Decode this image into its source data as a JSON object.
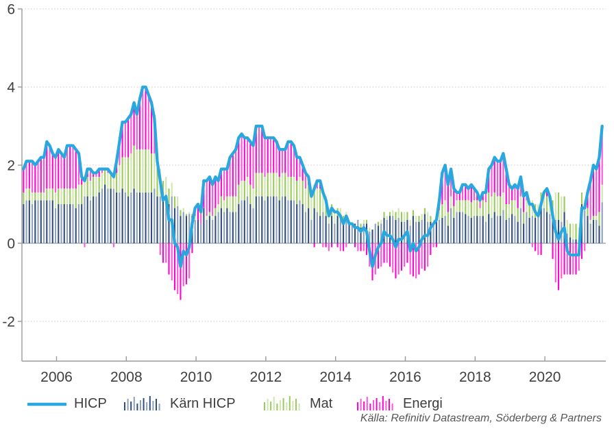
{
  "source": "Källa: Refinitiv Datastream, Söderberg & Partners",
  "legend": [
    {
      "label": "HICP",
      "type": "line",
      "color": "#29a8e0"
    },
    {
      "label": "Kärn HICP",
      "type": "bars",
      "color": "#2e4d7b",
      "color_light": "#8da0bd"
    },
    {
      "label": "Mat",
      "type": "bars",
      "color": "#9bc95d",
      "color_light": "#cfe7ad"
    },
    {
      "label": "Energi",
      "type": "bars",
      "color": "#fb04cd",
      "color_light": "#ff55da"
    }
  ],
  "chart_data": {
    "type": "line+stacked-bar",
    "title": "",
    "xlabel": "",
    "ylabel": "",
    "x_start": "2005-01",
    "x_end": "2021-08",
    "frequency": "monthly",
    "x_tick_labels": [
      "2006",
      "2008",
      "2010",
      "2012",
      "2014",
      "2016",
      "2018",
      "2020"
    ],
    "y_ticks": [
      6,
      4,
      2,
      0,
      -2
    ],
    "ylim": [
      -3.0,
      6.0
    ],
    "grid": "dotted horizontal",
    "legend_position": "bottom",
    "colors": {
      "line": "#29a8e0",
      "grid": "#c6c6c6",
      "axis": "#9a9a9a",
      "tick_text": "#3f3f3f"
    },
    "series": {
      "hicp": {
        "name": "HICP",
        "kind": "line",
        "values": [
          1.9,
          2.1,
          2.1,
          2.1,
          2.0,
          2.1,
          2.2,
          2.2,
          2.6,
          2.5,
          2.3,
          2.2,
          2.4,
          2.3,
          2.2,
          2.5,
          2.5,
          2.5,
          2.4,
          2.3,
          1.7,
          1.6,
          1.9,
          1.9,
          1.8,
          1.8,
          1.9,
          1.9,
          1.9,
          1.9,
          1.8,
          1.7,
          2.1,
          2.6,
          3.1,
          3.1,
          3.2,
          3.3,
          3.6,
          3.3,
          3.7,
          4.0,
          4.0,
          3.8,
          3.6,
          3.2,
          2.1,
          1.6,
          1.1,
          1.2,
          0.6,
          0.6,
          0.0,
          -0.1,
          -0.6,
          -0.2,
          -0.3,
          -0.1,
          0.5,
          0.9,
          1.0,
          0.8,
          1.6,
          1.6,
          1.7,
          1.5,
          1.7,
          1.6,
          1.9,
          1.9,
          1.9,
          2.2,
          2.3,
          2.4,
          2.7,
          2.8,
          2.7,
          2.7,
          2.6,
          2.5,
          3.0,
          3.0,
          3.0,
          2.7,
          2.7,
          2.7,
          2.7,
          2.6,
          2.4,
          2.4,
          2.4,
          2.6,
          2.6,
          2.5,
          2.2,
          2.2,
          2.0,
          1.8,
          1.7,
          1.2,
          1.4,
          1.6,
          1.6,
          1.3,
          1.1,
          0.7,
          0.9,
          0.8,
          0.8,
          0.7,
          0.5,
          0.7,
          0.5,
          0.5,
          0.4,
          0.4,
          0.3,
          0.4,
          0.3,
          -0.2,
          -0.6,
          -0.3,
          -0.1,
          0.0,
          0.3,
          0.2,
          0.2,
          0.1,
          -0.1,
          0.1,
          0.1,
          0.2,
          0.3,
          -0.2,
          0.0,
          -0.2,
          -0.1,
          0.1,
          0.2,
          0.2,
          0.4,
          0.5,
          0.6,
          1.1,
          1.8,
          2.0,
          1.5,
          1.9,
          1.4,
          1.3,
          1.3,
          1.5,
          1.5,
          1.4,
          1.5,
          1.4,
          1.3,
          1.1,
          1.3,
          1.3,
          1.9,
          2.0,
          2.2,
          2.1,
          2.1,
          2.3,
          1.9,
          1.5,
          1.4,
          1.5,
          1.4,
          1.7,
          1.2,
          1.3,
          1.0,
          1.0,
          0.8,
          0.7,
          1.0,
          1.3,
          1.4,
          1.2,
          0.7,
          0.3,
          0.1,
          0.3,
          0.4,
          -0.2,
          -0.3,
          -0.3,
          -0.3,
          -0.3,
          0.9,
          0.9,
          1.3,
          1.6,
          2.0,
          1.9,
          2.2,
          3.0
        ]
      },
      "karn_hicp": {
        "name": "Kärn HICP",
        "kind": "bar-contribution",
        "values": [
          1.0,
          1.1,
          1.1,
          1.0,
          1.1,
          1.1,
          1.1,
          1.1,
          1.1,
          1.1,
          1.1,
          0.9,
          1.0,
          1.0,
          1.0,
          1.0,
          1.0,
          1.0,
          0.9,
          1.0,
          1.0,
          1.2,
          1.2,
          1.1,
          1.2,
          1.2,
          1.3,
          1.4,
          1.5,
          1.4,
          1.4,
          1.4,
          1.3,
          1.3,
          1.4,
          1.3,
          1.2,
          1.3,
          1.4,
          1.3,
          1.3,
          1.3,
          1.3,
          1.3,
          1.3,
          1.4,
          1.2,
          1.2,
          1.1,
          1.25,
          1.0,
          1.2,
          0.9,
          0.95,
          0.7,
          0.8,
          0.7,
          0.75,
          0.7,
          0.6,
          0.6,
          0.5,
          0.9,
          0.6,
          0.7,
          0.6,
          0.7,
          0.8,
          0.9,
          0.8,
          0.9,
          0.8,
          0.8,
          0.8,
          1.0,
          1.1,
          1.1,
          1.2,
          1.0,
          0.9,
          1.2,
          1.2,
          1.2,
          1.1,
          1.2,
          1.2,
          1.2,
          1.2,
          1.1,
          1.2,
          1.2,
          1.1,
          1.1,
          1.1,
          1.0,
          1.1,
          1.0,
          0.8,
          0.9,
          0.6,
          0.9,
          0.8,
          0.7,
          0.8,
          0.7,
          0.5,
          0.7,
          0.5,
          0.7,
          0.7,
          0.6,
          0.7,
          0.5,
          0.5,
          0.5,
          0.6,
          0.4,
          0.5,
          0.5,
          0.3,
          0.35,
          0.5,
          0.45,
          0.5,
          0.65,
          0.6,
          0.7,
          0.7,
          0.6,
          0.65,
          0.55,
          0.55,
          0.6,
          0.45,
          0.7,
          0.55,
          0.55,
          0.6,
          0.75,
          0.55,
          0.55,
          0.5,
          0.55,
          0.6,
          0.65,
          0.7,
          0.45,
          0.9,
          0.65,
          0.8,
          0.8,
          0.8,
          0.75,
          0.7,
          0.65,
          0.7,
          0.7,
          0.7,
          0.7,
          0.55,
          0.75,
          0.65,
          0.8,
          0.7,
          0.7,
          0.85,
          0.6,
          0.65,
          0.75,
          0.7,
          0.55,
          0.9,
          0.5,
          0.8,
          0.65,
          0.7,
          0.65,
          0.7,
          0.95,
          0.9,
          0.8,
          0.75,
          0.65,
          0.6,
          0.6,
          0.55,
          0.8,
          0.25,
          0.15,
          0.1,
          0.1,
          0.1,
          1.0,
          0.85,
          0.7,
          0.5,
          0.6,
          0.6,
          0.45,
          1.05
        ]
      },
      "mat": {
        "name": "Mat",
        "kind": "bar-contribution",
        "values": [
          0.3,
          0.3,
          0.3,
          0.3,
          0.2,
          0.2,
          0.2,
          0.2,
          0.3,
          0.3,
          0.3,
          0.4,
          0.4,
          0.4,
          0.4,
          0.4,
          0.4,
          0.4,
          0.5,
          0.5,
          0.5,
          0.5,
          0.5,
          0.5,
          0.5,
          0.5,
          0.4,
          0.4,
          0.4,
          0.4,
          0.4,
          0.4,
          0.5,
          0.7,
          0.8,
          0.9,
          1.0,
          1.0,
          1.1,
          1.1,
          1.1,
          1.1,
          1.1,
          1.1,
          1.0,
          0.9,
          0.8,
          0.7,
          0.5,
          0.45,
          0.4,
          0.35,
          0.3,
          0.25,
          0.15,
          0.1,
          0.05,
          0.05,
          0.05,
          0.1,
          0.0,
          0.0,
          0.0,
          0.1,
          0.1,
          0.1,
          0.2,
          0.2,
          0.3,
          0.3,
          0.3,
          0.4,
          0.4,
          0.4,
          0.5,
          0.5,
          0.5,
          0.5,
          0.5,
          0.5,
          0.6,
          0.6,
          0.6,
          0.6,
          0.6,
          0.6,
          0.6,
          0.6,
          0.6,
          0.6,
          0.6,
          0.6,
          0.6,
          0.6,
          0.6,
          0.6,
          0.6,
          0.6,
          0.6,
          0.6,
          0.6,
          0.6,
          0.7,
          0.6,
          0.5,
          0.4,
          0.3,
          0.3,
          0.2,
          0.2,
          0.1,
          0.1,
          0.0,
          0.0,
          0.0,
          0.0,
          0.1,
          0.1,
          0.1,
          0.1,
          0.0,
          0.0,
          0.1,
          0.1,
          0.15,
          0.1,
          0.1,
          0.15,
          0.2,
          0.25,
          0.25,
          0.25,
          0.2,
          0.15,
          0.15,
          0.15,
          0.15,
          0.15,
          0.15,
          0.25,
          0.15,
          0.1,
          0.15,
          0.25,
          0.35,
          0.4,
          0.35,
          0.3,
          0.3,
          0.3,
          0.3,
          0.3,
          0.35,
          0.4,
          0.4,
          0.4,
          0.4,
          0.2,
          0.4,
          0.5,
          0.55,
          0.55,
          0.5,
          0.5,
          0.5,
          0.45,
          0.4,
          0.35,
          0.35,
          0.4,
          0.35,
          0.3,
          0.3,
          0.3,
          0.35,
          0.4,
          0.35,
          0.3,
          0.35,
          0.4,
          0.4,
          0.45,
          0.45,
          0.7,
          0.7,
          0.65,
          0.4,
          0.35,
          0.35,
          0.4,
          0.4,
          0.3,
          0.3,
          0.25,
          0.2,
          0.1,
          0.1,
          0.1,
          0.35,
          0.45
        ]
      },
      "energi": {
        "name": "Energi",
        "kind": "bar-contribution",
        "values": [
          0.6,
          0.7,
          0.7,
          0.8,
          0.7,
          0.8,
          0.9,
          0.9,
          1.2,
          1.1,
          0.9,
          0.9,
          1.0,
          0.9,
          0.8,
          1.1,
          1.1,
          1.1,
          1.0,
          0.8,
          0.2,
          -0.1,
          0.2,
          0.3,
          0.1,
          0.1,
          0.2,
          0.1,
          0.0,
          0.1,
          0.0,
          -0.1,
          0.3,
          0.6,
          0.9,
          0.9,
          1.0,
          1.0,
          1.1,
          0.9,
          1.3,
          1.6,
          1.6,
          1.4,
          1.3,
          0.9,
          0.1,
          -0.3,
          -0.5,
          -0.5,
          -0.8,
          -0.95,
          -1.2,
          -1.3,
          -1.45,
          -1.1,
          -1.05,
          -0.9,
          -0.25,
          0.2,
          0.4,
          0.3,
          0.7,
          0.9,
          0.9,
          0.8,
          0.8,
          0.6,
          0.7,
          0.8,
          0.7,
          1.0,
          1.1,
          1.2,
          1.2,
          1.2,
          1.1,
          1.0,
          1.1,
          1.1,
          1.2,
          1.2,
          1.2,
          1.0,
          0.9,
          0.9,
          0.9,
          0.8,
          0.7,
          0.6,
          0.6,
          0.9,
          0.9,
          0.8,
          0.6,
          0.5,
          0.4,
          0.4,
          0.2,
          0.0,
          -0.1,
          0.2,
          0.2,
          -0.1,
          -0.1,
          -0.2,
          -0.1,
          0.0,
          -0.1,
          -0.2,
          -0.2,
          -0.1,
          0.0,
          0.0,
          -0.1,
          -0.2,
          -0.2,
          -0.2,
          -0.3,
          -0.6,
          -0.95,
          -0.8,
          -0.65,
          -0.6,
          -0.5,
          -0.5,
          -0.6,
          -0.75,
          -0.9,
          -0.8,
          -0.7,
          -0.6,
          -0.5,
          -0.8,
          -0.85,
          -0.9,
          -0.8,
          -0.65,
          -0.7,
          -0.6,
          -0.3,
          -0.1,
          -0.1,
          0.25,
          0.8,
          0.9,
          0.7,
          0.7,
          0.45,
          0.2,
          0.2,
          0.4,
          0.4,
          0.3,
          0.45,
          0.3,
          0.2,
          0.2,
          0.2,
          0.25,
          0.6,
          0.8,
          0.9,
          0.9,
          0.9,
          1.0,
          0.9,
          0.5,
          0.3,
          0.4,
          0.5,
          0.5,
          0.4,
          0.2,
          0.0,
          -0.1,
          -0.2,
          -0.3,
          -0.3,
          0.0,
          0.2,
          0.0,
          -0.4,
          -1.0,
          -1.2,
          -0.9,
          -0.8,
          -0.8,
          -0.8,
          -0.8,
          -0.8,
          -0.7,
          -0.4,
          -0.2,
          0.4,
          1.0,
          1.3,
          1.2,
          1.4,
          1.5
        ]
      }
    }
  }
}
